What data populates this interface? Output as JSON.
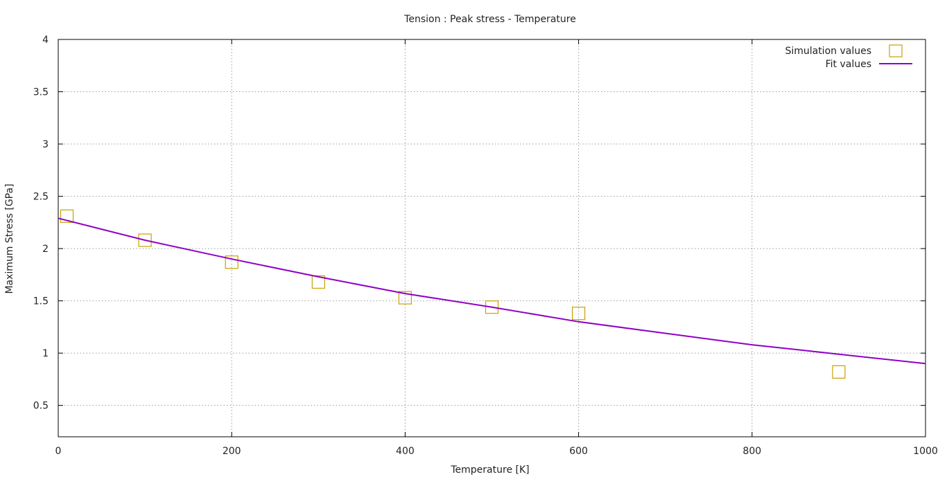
{
  "chart_data": {
    "type": "scatter",
    "title": "Tension : Peak stress - Temperature",
    "xlabel": "Temperature [K]",
    "ylabel": "Maximum Stress [GPa]",
    "xlim": [
      0,
      1000
    ],
    "ylim": [
      0.2,
      4
    ],
    "xticks": [
      0,
      200,
      400,
      600,
      800,
      1000
    ],
    "yticks": [
      0.5,
      1,
      1.5,
      2,
      2.5,
      3,
      3.5,
      4
    ],
    "xtick_labels": [
      "0",
      "200",
      "400",
      "600",
      "800",
      "1000"
    ],
    "ytick_labels": [
      "0.5",
      "1",
      "1.5",
      "2",
      "2.5",
      "3",
      "3.5",
      "4"
    ],
    "grid": true,
    "legend_position": "top-right",
    "series": [
      {
        "name": "Simulation values",
        "kind": "points",
        "marker": "open-square",
        "color": "#c8a000",
        "x": [
          10,
          100,
          200,
          300,
          400,
          500,
          600,
          900
        ],
        "y": [
          2.31,
          2.08,
          1.87,
          1.68,
          1.53,
          1.44,
          1.38,
          0.82
        ]
      },
      {
        "name": "Fit values",
        "kind": "line",
        "color": "#8f00c6",
        "x": [
          0,
          100,
          200,
          300,
          400,
          500,
          600,
          700,
          800,
          900,
          1000
        ],
        "y": [
          2.29,
          2.08,
          1.9,
          1.73,
          1.57,
          1.44,
          1.3,
          1.19,
          1.08,
          0.99,
          0.9
        ]
      }
    ]
  }
}
